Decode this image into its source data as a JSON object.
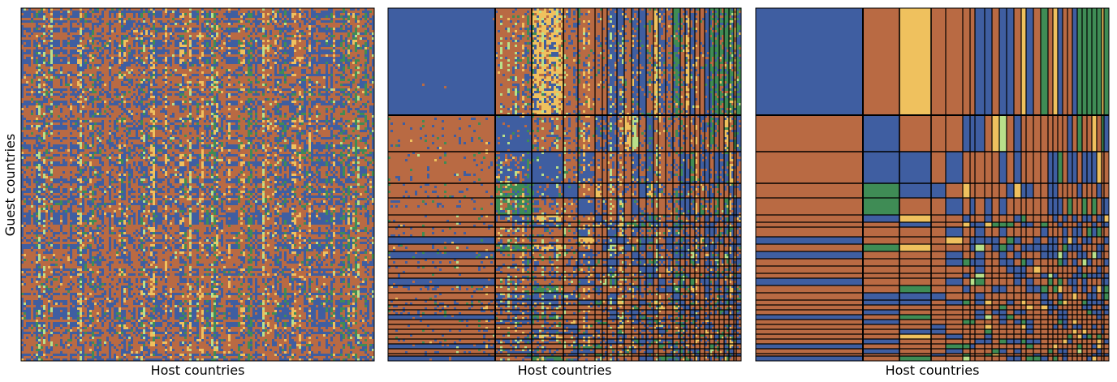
{
  "chart_data": {
    "type": "heatmap",
    "palette": {
      "blue": "#3f5ea1",
      "orange": "#b96a43",
      "green": "#3f8c55",
      "yellow": "#efc15e",
      "light_green": "#b8e08a"
    },
    "panels": [
      {
        "title": "",
        "xlabel": "Host countries",
        "ylabel": "Guest countries",
        "ordering": "unordered",
        "n_countries": 145,
        "block_boundaries": []
      },
      {
        "title": "",
        "xlabel": "Host countries",
        "ylabel": "",
        "ordering": "block-sorted",
        "n_countries": 145,
        "block_boundaries": [
          44,
          59,
          72,
          78,
          85,
          88,
          90,
          94,
          97,
          100,
          103,
          106,
          109,
          111,
          114,
          117,
          120,
          122,
          124,
          126,
          128,
          130,
          132,
          134,
          136,
          138,
          140,
          142,
          143
        ]
      },
      {
        "title": "",
        "xlabel": "Host countries",
        "ylabel": "",
        "ordering": "block-averaged",
        "n_countries": 145,
        "block_boundaries": [
          44,
          59,
          72,
          78,
          85,
          88,
          90,
          94,
          97,
          100,
          103,
          106,
          109,
          111,
          114,
          117,
          120,
          122,
          124,
          126,
          128,
          130,
          132,
          134,
          136,
          138,
          140,
          142,
          143
        ]
      }
    ]
  }
}
